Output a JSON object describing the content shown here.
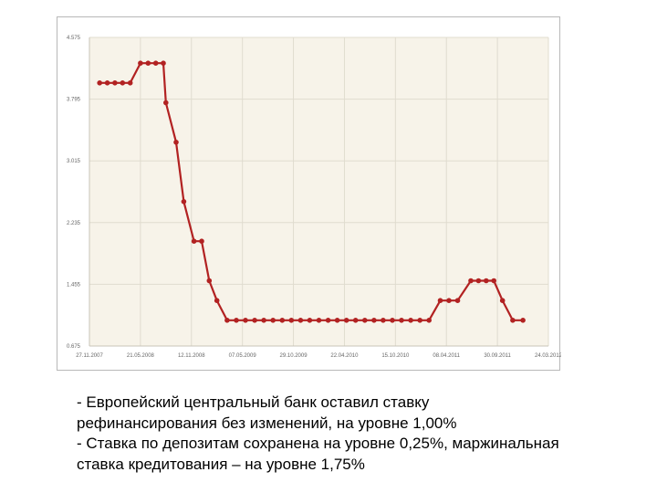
{
  "chart_data": {
    "type": "line",
    "title": "",
    "xlabel": "",
    "ylabel": "",
    "ylim": [
      0.675,
      4.575
    ],
    "y_ticks": [
      "4.575",
      "3.795",
      "3.015",
      "2.235",
      "1.455",
      "0.675"
    ],
    "y_tick_values": [
      4.575,
      3.795,
      3.015,
      2.235,
      1.455,
      0.675
    ],
    "x_ticks": [
      "27.11.2007",
      "21.05.2008",
      "12.11.2008",
      "07.05.2009",
      "29.10.2009",
      "22.04.2010",
      "15.10.2010",
      "08.04.2011",
      "30.09.2011",
      "24.03.2012"
    ],
    "grid": true,
    "legend": "none",
    "series": [
      {
        "color": "#b22222",
        "points": [
          [
            0.2,
            4.0
          ],
          [
            0.35,
            4.0
          ],
          [
            0.5,
            4.0
          ],
          [
            0.65,
            4.0
          ],
          [
            0.8,
            4.0
          ],
          [
            1.0,
            4.25
          ],
          [
            1.15,
            4.25
          ],
          [
            1.3,
            4.25
          ],
          [
            1.45,
            4.25
          ],
          [
            1.5,
            3.75
          ],
          [
            1.7,
            3.25
          ],
          [
            1.85,
            2.5
          ],
          [
            2.05,
            2.0
          ],
          [
            2.2,
            2.0
          ],
          [
            2.35,
            1.5
          ],
          [
            2.5,
            1.25
          ],
          [
            2.7,
            1.0
          ],
          [
            2.88,
            1.0
          ],
          [
            3.06,
            1.0
          ],
          [
            3.24,
            1.0
          ],
          [
            3.42,
            1.0
          ],
          [
            3.6,
            1.0
          ],
          [
            3.78,
            1.0
          ],
          [
            3.96,
            1.0
          ],
          [
            4.14,
            1.0
          ],
          [
            4.32,
            1.0
          ],
          [
            4.5,
            1.0
          ],
          [
            4.68,
            1.0
          ],
          [
            4.86,
            1.0
          ],
          [
            5.04,
            1.0
          ],
          [
            5.22,
            1.0
          ],
          [
            5.4,
            1.0
          ],
          [
            5.58,
            1.0
          ],
          [
            5.76,
            1.0
          ],
          [
            5.94,
            1.0
          ],
          [
            6.12,
            1.0
          ],
          [
            6.3,
            1.0
          ],
          [
            6.48,
            1.0
          ],
          [
            6.66,
            1.0
          ],
          [
            6.88,
            1.25
          ],
          [
            7.05,
            1.25
          ],
          [
            7.22,
            1.25
          ],
          [
            7.48,
            1.5
          ],
          [
            7.63,
            1.5
          ],
          [
            7.78,
            1.5
          ],
          [
            7.93,
            1.5
          ],
          [
            8.1,
            1.25
          ],
          [
            8.3,
            1.0
          ],
          [
            8.5,
            1.0
          ]
        ]
      }
    ]
  },
  "caption": {
    "line1": "- Европейский центральный банк оставил ставку",
    "line2": "рефинансирования без изменений, на уровне 1,00%",
    "line3": "- Ставка по депозитам сохранена на уровне 0,25%, маржинальная",
    "line4": "ставка кредитования – на уровне 1,75%"
  }
}
